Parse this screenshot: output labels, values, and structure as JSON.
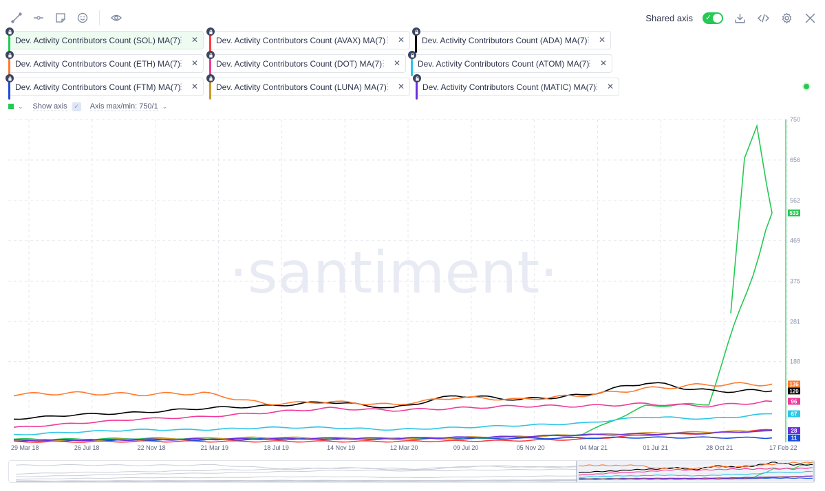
{
  "toolbar": {
    "left_icons": [
      "pencil-line-icon",
      "horizontal-ray-icon",
      "sticky-note-icon",
      "smiley-icon",
      "eye-icon"
    ],
    "shared_axis_label": "Shared axis",
    "shared_axis_on": true,
    "right_icons": [
      "download-icon",
      "code-icon",
      "gear-icon",
      "close-icon"
    ]
  },
  "metrics": [
    {
      "label": "Dev. Activity Contributors Count (SOL) MA(7)",
      "color": "#26c953"
    },
    {
      "label": "Dev. Activity Contributors Count (AVAX) MA(7)",
      "color": "#ff3a3a"
    },
    {
      "label": "Dev. Activity Contributors Count (ADA) MA(7)",
      "color": "#000000"
    },
    {
      "label": "Dev. Activity Contributors Count (ETH) MA(7)",
      "color": "#ff7a2d"
    },
    {
      "label": "Dev. Activity Contributors Count (DOT) MA(7)",
      "color": "#f03a9a"
    },
    {
      "label": "Dev. Activity Contributors Count (ATOM) MA(7)",
      "color": "#2cc6e6"
    },
    {
      "label": "Dev. Activity Contributors Count (FTM) MA(7)",
      "color": "#1b4dd9"
    },
    {
      "label": "Dev. Activity Contributors Count (LUNA) MA(7)",
      "color": "#c99a2e"
    },
    {
      "label": "Dev. Activity Contributors Count (MATIC) MA(7)",
      "color": "#6d2fe0"
    }
  ],
  "axis_controls": {
    "show_axis_label": "Show axis",
    "axis_maxmin_label": "Axis max/min: 750/1"
  },
  "watermark": "·santiment·",
  "chart_data": {
    "type": "line",
    "x": [
      "29 Mar 18",
      "26 Jul 18",
      "22 Nov 18",
      "21 Mar 19",
      "18 Jul 19",
      "14 Nov 19",
      "12 Mar 20",
      "09 Jul 20",
      "05 Nov 20",
      "04 Mar 21",
      "01 Jul 21",
      "28 Oct 21",
      "17 Feb 22"
    ],
    "yticks": [
      188,
      281,
      375,
      469,
      562,
      656,
      750
    ],
    "ylim": [
      1,
      750
    ],
    "grid": true,
    "series": [
      {
        "name": "SOL",
        "color": "#26c953",
        "values": [
          8,
          8,
          10,
          10,
          9,
          9,
          9,
          10,
          12,
          20,
          85,
          90,
          533
        ],
        "last_label": "533"
      },
      {
        "name": "AVAX",
        "color": "#ff3a3a",
        "values": [
          2,
          2,
          3,
          3,
          3,
          3,
          3,
          4,
          5,
          8,
          18,
          22,
          30
        ]
      },
      {
        "name": "ADA",
        "color": "#000000",
        "values": [
          55,
          65,
          70,
          80,
          85,
          95,
          80,
          110,
          100,
          110,
          140,
          120,
          120
        ],
        "last_label": "120"
      },
      {
        "name": "ETH",
        "color": "#ff7a2d",
        "values": [
          112,
          115,
          112,
          115,
          90,
          95,
          88,
          105,
          100,
          110,
          125,
          135,
          136
        ],
        "last_label": "136"
      },
      {
        "name": "DOT",
        "color": "#f03a9a",
        "values": [
          35,
          45,
          55,
          60,
          70,
          80,
          75,
          80,
          85,
          85,
          90,
          85,
          96
        ],
        "last_label": "96"
      },
      {
        "name": "ATOM",
        "color": "#2cc6e6",
        "values": [
          18,
          25,
          30,
          30,
          35,
          35,
          30,
          35,
          40,
          45,
          60,
          55,
          67
        ],
        "last_label": "67"
      },
      {
        "name": "FTM",
        "color": "#1b4dd9",
        "values": [
          5,
          6,
          7,
          7,
          8,
          8,
          9,
          10,
          10,
          11,
          12,
          12,
          11
        ],
        "last_label": "11"
      },
      {
        "name": "LUNA",
        "color": "#c99a2e",
        "values": [
          5,
          6,
          8,
          10,
          12,
          11,
          10,
          12,
          14,
          18,
          22,
          25,
          28
        ]
      },
      {
        "name": "MATIC",
        "color": "#6d2fe0",
        "values": [
          5,
          6,
          7,
          8,
          9,
          10,
          10,
          12,
          14,
          18,
          20,
          22,
          28
        ],
        "last_label": "28"
      }
    ]
  }
}
